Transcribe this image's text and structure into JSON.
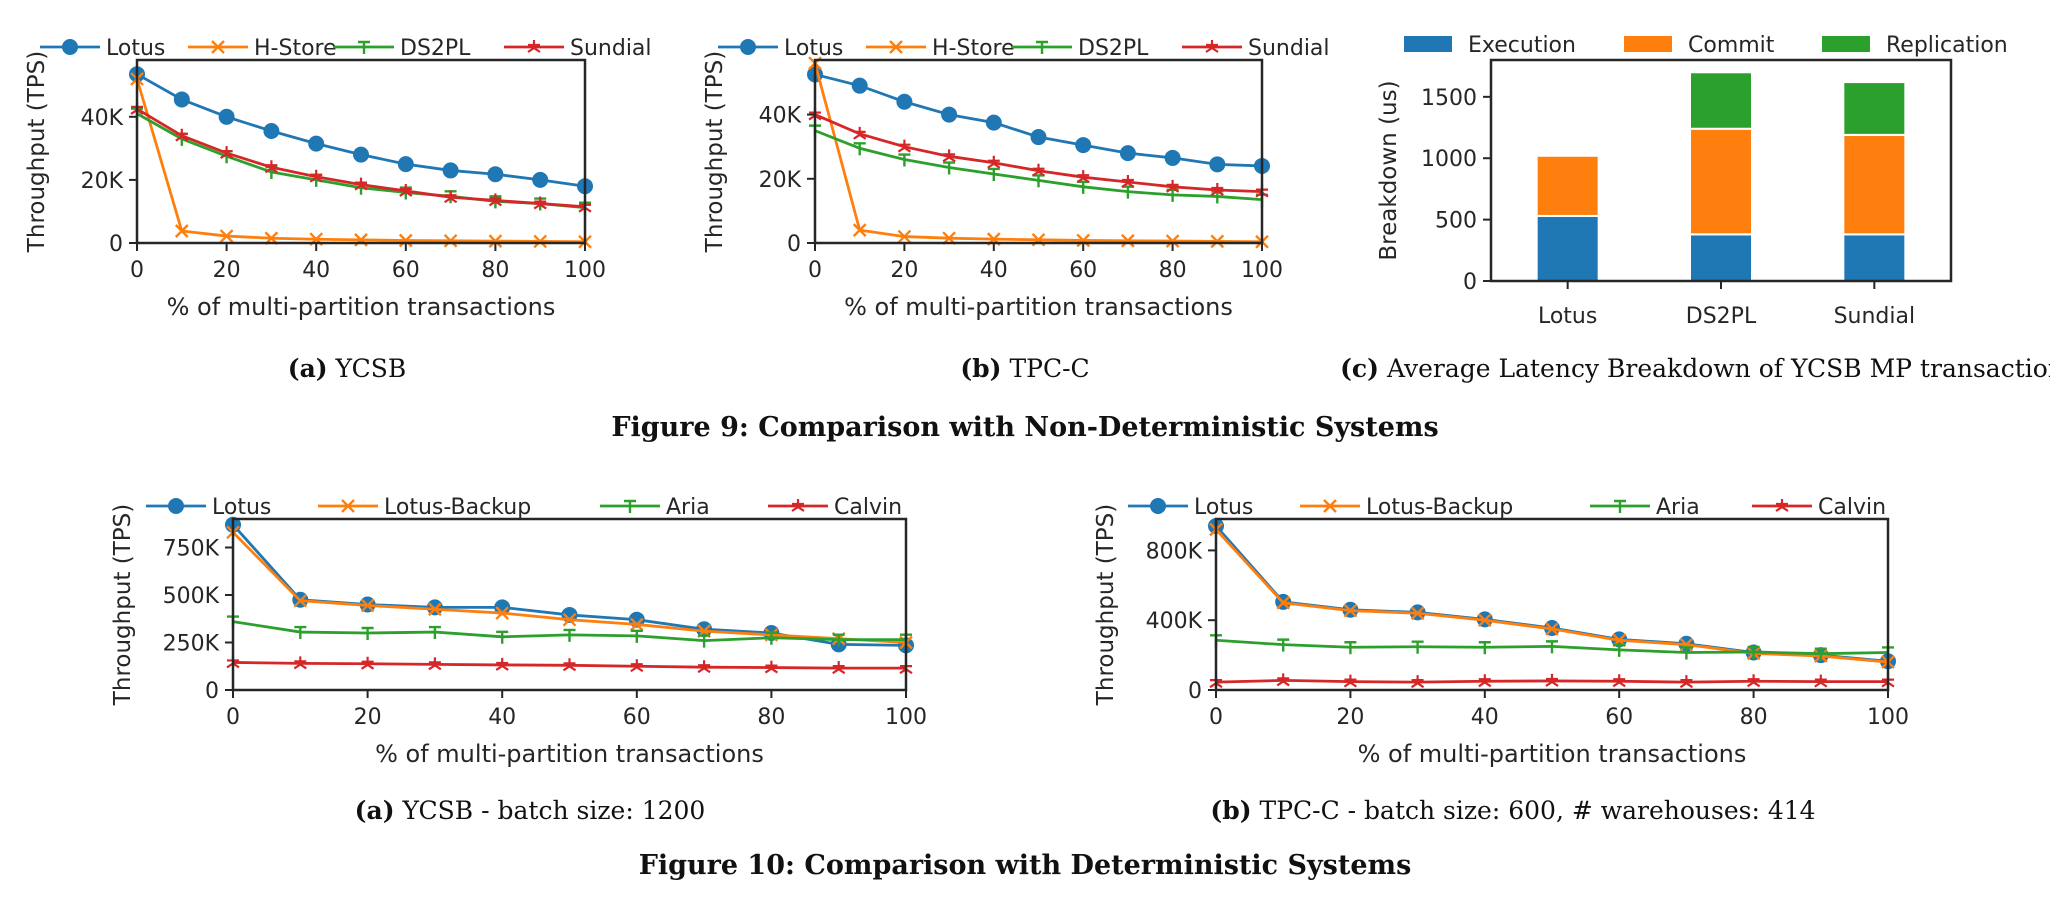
{
  "colors": {
    "Lotus": "#1f77b4",
    "H-Store": "#ff7f0e",
    "DS2PL": "#2ca02c",
    "Sundial": "#d62728",
    "Lotus-Backup": "#ff7f0e",
    "Aria": "#2ca02c",
    "Calvin": "#d62728",
    "Execution": "#1f77b4",
    "Commit": "#ff7f0e",
    "Replication": "#2ca02c"
  },
  "captions": {
    "fig9a": {
      "tag": "(a)",
      "text": "YCSB"
    },
    "fig9b": {
      "tag": "(b)",
      "text": "TPC-C"
    },
    "fig9c": {
      "tag": "(c)",
      "text": "Average Latency Breakdown of YCSB MP transaction"
    },
    "fig9": "Figure 9: Comparison with Non-Deterministic Systems",
    "fig10a": {
      "tag": "(a)",
      "text": "YCSB - batch size: 1200"
    },
    "fig10b": {
      "tag": "(b)",
      "text": "TPC-C - batch size: 600, # warehouses: 414"
    },
    "fig10": "Figure 10: Comparison with Deterministic Systems"
  },
  "chart_data": [
    {
      "id": "fig9a",
      "type": "line",
      "xlabel": "% of multi-partition transactions",
      "ylabel": "Throughput (TPS)",
      "xlim": [
        0,
        100
      ],
      "ylim": [
        0,
        58000
      ],
      "xticks": [
        0,
        20,
        40,
        60,
        80,
        100
      ],
      "yticks": [
        0,
        20000,
        40000
      ],
      "ytick_labels": [
        "0",
        "20K",
        "40K"
      ],
      "legend": "top",
      "grid": false,
      "x": [
        0,
        10,
        20,
        30,
        40,
        50,
        60,
        70,
        80,
        90,
        100
      ],
      "series": [
        {
          "name": "Lotus",
          "marker": "circle",
          "values": [
            53500,
            45500,
            40000,
            35500,
            31500,
            28000,
            25000,
            23000,
            21800,
            20000,
            18000
          ]
        },
        {
          "name": "H-Store",
          "marker": "x",
          "values": [
            52000,
            3800,
            2200,
            1500,
            1200,
            1000,
            800,
            700,
            600,
            500,
            400
          ]
        },
        {
          "name": "DS2PL",
          "marker": "tri",
          "values": [
            41000,
            33000,
            27500,
            22500,
            20000,
            17500,
            16000,
            14800,
            13200,
            12500,
            11200
          ]
        },
        {
          "name": "Sundial",
          "marker": "star",
          "values": [
            42500,
            34000,
            28500,
            24000,
            21000,
            18500,
            16500,
            14500,
            13500,
            12500,
            11500
          ]
        }
      ]
    },
    {
      "id": "fig9b",
      "type": "line",
      "xlabel": "% of multi-partition transactions",
      "ylabel": "Throughput (TPS)",
      "xlim": [
        0,
        100
      ],
      "ylim": [
        0,
        57000
      ],
      "xticks": [
        0,
        20,
        40,
        60,
        80,
        100
      ],
      "yticks": [
        0,
        20000,
        40000
      ],
      "ytick_labels": [
        "0",
        "20K",
        "40K"
      ],
      "legend": "top",
      "grid": false,
      "x": [
        0,
        10,
        20,
        30,
        40,
        50,
        60,
        70,
        80,
        90,
        100
      ],
      "series": [
        {
          "name": "Lotus",
          "marker": "circle",
          "values": [
            52500,
            49000,
            44000,
            40000,
            37500,
            33000,
            30500,
            28000,
            26500,
            24500,
            24000
          ]
        },
        {
          "name": "H-Store",
          "marker": "x",
          "values": [
            56000,
            4000,
            2000,
            1500,
            1200,
            1000,
            800,
            700,
            600,
            500,
            400
          ]
        },
        {
          "name": "DS2PL",
          "marker": "tri",
          "values": [
            35000,
            29500,
            26000,
            23500,
            21500,
            19500,
            17500,
            16000,
            15000,
            14500,
            13500
          ]
        },
        {
          "name": "Sundial",
          "marker": "star",
          "values": [
            40000,
            34000,
            30000,
            27000,
            25000,
            22500,
            20500,
            19000,
            17500,
            16500,
            16000
          ]
        }
      ]
    },
    {
      "id": "fig9c",
      "type": "bar",
      "stacked": true,
      "categories": [
        "Lotus",
        "DS2PL",
        "Sundial"
      ],
      "ylabel": "Breakdown (us)",
      "ylim": [
        0,
        1800
      ],
      "yticks": [
        0,
        500,
        1000,
        1500
      ],
      "ytick_labels": [
        "0",
        "500",
        "1000",
        "1500"
      ],
      "legend": "top",
      "series": [
        {
          "name": "Execution",
          "values": [
            530,
            380,
            380
          ]
        },
        {
          "name": "Commit",
          "values": [
            490,
            860,
            810
          ]
        },
        {
          "name": "Replication",
          "values": [
            0,
            460,
            430
          ]
        }
      ]
    },
    {
      "id": "fig10a",
      "type": "line",
      "xlabel": "% of multi-partition transactions",
      "ylabel": "Throughput (TPS)",
      "xlim": [
        0,
        100
      ],
      "ylim": [
        0,
        900000
      ],
      "xticks": [
        0,
        20,
        40,
        60,
        80,
        100
      ],
      "yticks": [
        0,
        250000,
        500000,
        750000
      ],
      "ytick_labels": [
        "0",
        "250K",
        "500K",
        "750K"
      ],
      "legend": "top",
      "grid": false,
      "x": [
        0,
        10,
        20,
        30,
        40,
        50,
        60,
        70,
        80,
        90,
        100
      ],
      "series": [
        {
          "name": "Lotus",
          "marker": "circle",
          "values": [
            870000,
            475000,
            450000,
            435000,
            435000,
            395000,
            370000,
            320000,
            300000,
            240000,
            235000
          ]
        },
        {
          "name": "Lotus-Backup",
          "marker": "x",
          "values": [
            830000,
            470000,
            445000,
            425000,
            405000,
            370000,
            345000,
            310000,
            290000,
            270000,
            250000
          ]
        },
        {
          "name": "Aria",
          "marker": "tri",
          "values": [
            360000,
            305000,
            300000,
            305000,
            280000,
            290000,
            285000,
            260000,
            275000,
            265000,
            265000
          ]
        },
        {
          "name": "Calvin",
          "marker": "star",
          "values": [
            145000,
            140000,
            138000,
            135000,
            132000,
            130000,
            125000,
            120000,
            118000,
            115000,
            115000
          ]
        }
      ]
    },
    {
      "id": "fig10b",
      "type": "line",
      "xlabel": "% of multi-partition transactions",
      "ylabel": "Throughput (TPS)",
      "xlim": [
        0,
        100
      ],
      "ylim": [
        0,
        980000
      ],
      "xticks": [
        0,
        20,
        40,
        60,
        80,
        100
      ],
      "yticks": [
        0,
        400000,
        800000
      ],
      "ytick_labels": [
        "0",
        "400K",
        "800K"
      ],
      "legend": "top",
      "grid": false,
      "x": [
        0,
        10,
        20,
        30,
        40,
        50,
        60,
        70,
        80,
        90,
        100
      ],
      "series": [
        {
          "name": "Lotus",
          "marker": "circle",
          "values": [
            940000,
            505000,
            460000,
            445000,
            405000,
            355000,
            290000,
            265000,
            215000,
            200000,
            165000
          ]
        },
        {
          "name": "Lotus-Backup",
          "marker": "x",
          "values": [
            920000,
            500000,
            455000,
            440000,
            400000,
            350000,
            285000,
            260000,
            210000,
            195000,
            160000
          ]
        },
        {
          "name": "Aria",
          "marker": "tri",
          "values": [
            285000,
            260000,
            245000,
            248000,
            245000,
            250000,
            230000,
            215000,
            218000,
            208000,
            215000
          ]
        },
        {
          "name": "Calvin",
          "marker": "star",
          "values": [
            45000,
            55000,
            48000,
            45000,
            50000,
            52000,
            50000,
            45000,
            50000,
            48000,
            48000
          ]
        }
      ]
    }
  ]
}
